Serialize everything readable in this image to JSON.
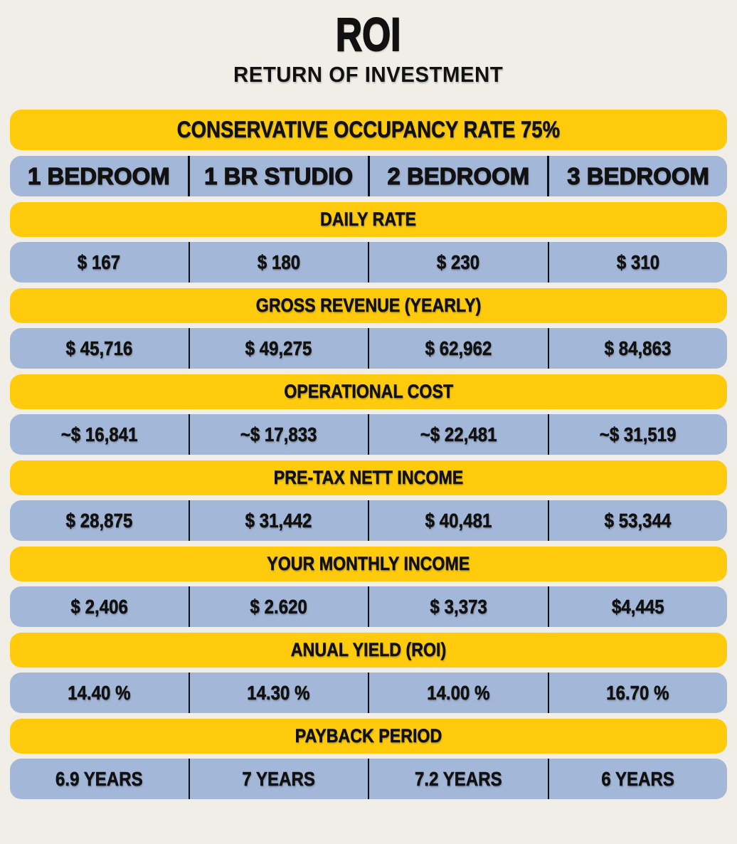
{
  "header": {
    "title": "ROI",
    "subtitle": "RETURN OF INVESTMENT"
  },
  "colors": {
    "accent_yellow": "#FFCB0C",
    "cell_blue": "#A3B7D9",
    "background": "#F1EEE7",
    "text": "#111111",
    "divider": "#111111"
  },
  "chart_data": {
    "type": "table",
    "title": "ROI",
    "subtitle": "RETURN OF INVESTMENT",
    "banner": "CONSERVATIVE OCCUPANCY RATE 75%",
    "occupancy_rate_percent": 75,
    "columns": [
      "1 BEDROOM",
      "1 BR STUDIO",
      "2 BEDROOM",
      "3 BEDROOM"
    ],
    "rows": [
      {
        "label": "DAILY RATE",
        "values": [
          "$ 167",
          "$ 180",
          "$ 230",
          "$ 310"
        ]
      },
      {
        "label": "GROSS REVENUE (YEARLY)",
        "values": [
          "$ 45,716",
          "$ 49,275",
          "$ 62,962",
          "$ 84,863"
        ]
      },
      {
        "label": "OPERATIONAL COST",
        "values": [
          "~$ 16,841",
          "~$ 17,833",
          "~$ 22,481",
          "~$ 31,519"
        ]
      },
      {
        "label": "PRE-TAX NETT INCOME",
        "values": [
          "$ 28,875",
          "$ 31,442",
          "$ 40,481",
          "$ 53,344"
        ]
      },
      {
        "label": "YOUR MONTHLY INCOME",
        "values": [
          "$ 2,406",
          "$ 2.620",
          "$ 3,373",
          "$4,445"
        ]
      },
      {
        "label": "ANUAL YIELD (ROI)",
        "values": [
          "14.40 %",
          "14.30 %",
          "14.00 %",
          "16.70 %"
        ]
      },
      {
        "label": "PAYBACK PERIOD",
        "values": [
          "6.9 YEARS",
          "7 YEARS",
          "7.2 YEARS",
          "6 YEARS"
        ]
      }
    ]
  }
}
